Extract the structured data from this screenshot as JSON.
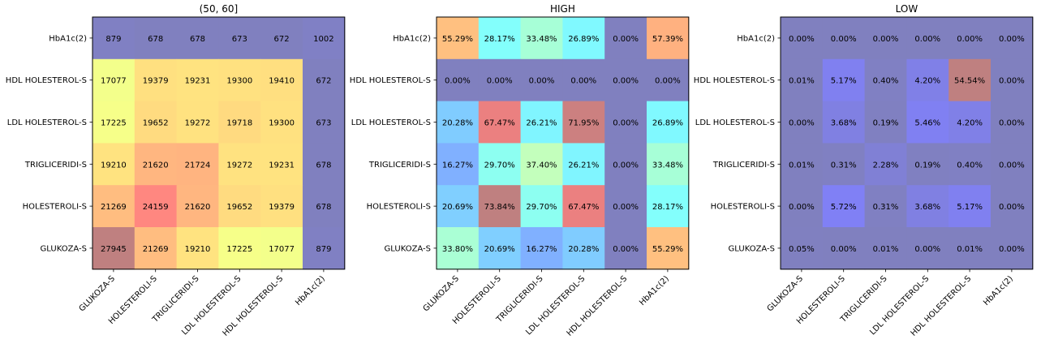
{
  "chart_data": [
    {
      "type": "heatmap",
      "title": "(50, 60]",
      "rows": [
        "HbA1c(2)",
        "HDL HOLESTEROL-S",
        "LDL HOLESTEROL-S",
        "TRIGLICERIDI-S",
        "HOLESTEROLI-S",
        "GLUKOZA-S"
      ],
      "columns": [
        "GLUKOZA-S",
        "HOLESTEROLI-S",
        "TRIGLICERIDI-S",
        "LDL HOLESTEROL-S",
        "HDL HOLESTEROL-S",
        "HbA1c(2)"
      ],
      "cell_labels": [
        [
          "879",
          "678",
          "678",
          "673",
          "672",
          "1002"
        ],
        [
          "17077",
          "19379",
          "19231",
          "19300",
          "19410",
          "672"
        ],
        [
          "17225",
          "19652",
          "19272",
          "19718",
          "19300",
          "673"
        ],
        [
          "19210",
          "21620",
          "21724",
          "19272",
          "19231",
          "678"
        ],
        [
          "21269",
          "24159",
          "21620",
          "19652",
          "19379",
          "678"
        ],
        [
          "27945",
          "21269",
          "19210",
          "17225",
          "17077",
          "879"
        ]
      ],
      "values": [
        [
          879,
          678,
          678,
          673,
          672,
          1002
        ],
        [
          17077,
          19379,
          19231,
          19300,
          19410,
          672
        ],
        [
          17225,
          19652,
          19272,
          19718,
          19300,
          673
        ],
        [
          19210,
          21620,
          21724,
          19272,
          19231,
          678
        ],
        [
          21269,
          24159,
          21620,
          19652,
          19379,
          678
        ],
        [
          27945,
          21269,
          19210,
          17225,
          17077,
          879
        ]
      ],
      "colormap": "jet",
      "alpha": 0.5
    },
    {
      "type": "heatmap",
      "title": "HIGH",
      "rows": [
        "HbA1c(2)",
        "HDL HOLESTEROL-S",
        "LDL HOLESTEROL-S",
        "TRIGLICERIDI-S",
        "HOLESTEROLI-S",
        "GLUKOZA-S"
      ],
      "columns": [
        "GLUKOZA-S",
        "HOLESTEROLI-S",
        "TRIGLICERIDI-S",
        "LDL HOLESTEROL-S",
        "HDL HOLESTEROL-S",
        "HbA1c(2)"
      ],
      "cell_labels": [
        [
          "55.29%",
          "28.17%",
          "33.48%",
          "26.89%",
          "0.00%",
          "57.39%"
        ],
        [
          "0.00%",
          "0.00%",
          "0.00%",
          "0.00%",
          "0.00%",
          "0.00%"
        ],
        [
          "20.28%",
          "67.47%",
          "26.21%",
          "71.95%",
          "0.00%",
          "26.89%"
        ],
        [
          "16.27%",
          "29.70%",
          "37.40%",
          "26.21%",
          "0.00%",
          "33.48%"
        ],
        [
          "20.69%",
          "73.84%",
          "29.70%",
          "67.47%",
          "0.00%",
          "28.17%"
        ],
        [
          "33.80%",
          "20.69%",
          "16.27%",
          "20.28%",
          "0.00%",
          "55.29%"
        ]
      ],
      "values": [
        [
          55.29,
          28.17,
          33.48,
          26.89,
          0.0,
          57.39
        ],
        [
          0.0,
          0.0,
          0.0,
          0.0,
          0.0,
          0.0
        ],
        [
          20.28,
          67.47,
          26.21,
          71.95,
          0.0,
          26.89
        ],
        [
          16.27,
          29.7,
          37.4,
          26.21,
          0.0,
          33.48
        ],
        [
          20.69,
          73.84,
          29.7,
          67.47,
          0.0,
          28.17
        ],
        [
          33.8,
          20.69,
          16.27,
          20.28,
          0.0,
          55.29
        ]
      ],
      "colormap": "jet",
      "alpha": 0.5
    },
    {
      "type": "heatmap",
      "title": "LOW",
      "rows": [
        "HbA1c(2)",
        "HDL HOLESTEROL-S",
        "LDL HOLESTEROL-S",
        "TRIGLICERIDI-S",
        "HOLESTEROLI-S",
        "GLUKOZA-S"
      ],
      "columns": [
        "GLUKOZA-S",
        "HOLESTEROLI-S",
        "TRIGLICERIDI-S",
        "LDL HOLESTEROL-S",
        "HDL HOLESTEROL-S",
        "HbA1c(2)"
      ],
      "cell_labels": [
        [
          "0.00%",
          "0.00%",
          "0.00%",
          "0.00%",
          "0.00%",
          "0.00%"
        ],
        [
          "0.01%",
          "5.17%",
          "0.40%",
          "4.20%",
          "54.54%",
          "0.00%"
        ],
        [
          "0.00%",
          "3.68%",
          "0.19%",
          "5.46%",
          "4.20%",
          "0.00%"
        ],
        [
          "0.01%",
          "0.31%",
          "2.28%",
          "0.19%",
          "0.40%",
          "0.00%"
        ],
        [
          "0.00%",
          "5.72%",
          "0.31%",
          "3.68%",
          "5.17%",
          "0.00%"
        ],
        [
          "0.05%",
          "0.00%",
          "0.01%",
          "0.00%",
          "0.01%",
          "0.00%"
        ]
      ],
      "values": [
        [
          0.0,
          0.0,
          0.0,
          0.0,
          0.0,
          0.0
        ],
        [
          0.01,
          5.17,
          0.4,
          4.2,
          54.54,
          0.0
        ],
        [
          0.0,
          3.68,
          0.19,
          5.46,
          4.2,
          0.0
        ],
        [
          0.01,
          0.31,
          2.28,
          0.19,
          0.4,
          0.0
        ],
        [
          0.0,
          5.72,
          0.31,
          3.68,
          5.17,
          0.0
        ],
        [
          0.05,
          0.0,
          0.01,
          0.0,
          0.01,
          0.0
        ]
      ],
      "colormap": "jet",
      "alpha": 0.5
    }
  ]
}
